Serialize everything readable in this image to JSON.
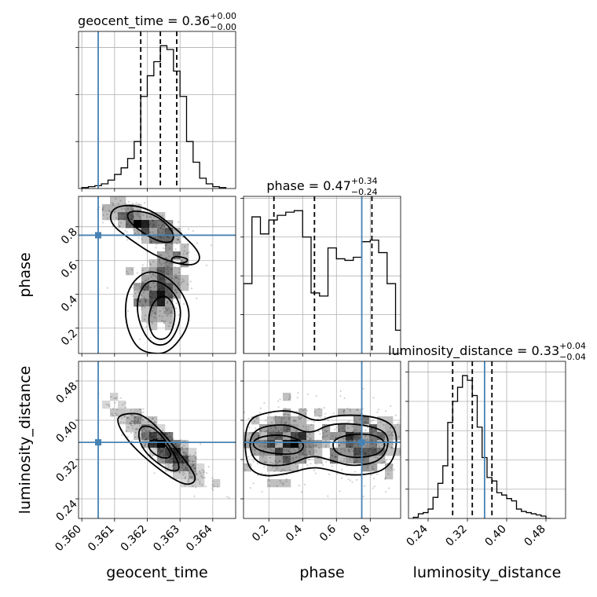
{
  "chart_data": {
    "type": "corner",
    "parameters": [
      "geocent_time",
      "phase",
      "luminosity_distance"
    ],
    "truths": [
      0.3605,
      0.75,
      0.355
    ],
    "truth_color": "#4682b4",
    "titles": [
      {
        "name": "geocent_time = 0.36",
        "sup": "+0.00",
        "sub": "−0.00"
      },
      {
        "name": "phase = 0.47",
        "sup": "+0.34",
        "sub": "−0.24"
      },
      {
        "name": "luminosity_distance = 0.33",
        "sup": "+0.04",
        "sub": "−0.04"
      }
    ],
    "axes": {
      "geocent_time": {
        "range": [
          0.3599,
          0.3647
        ],
        "ticks": [
          "0.360",
          "0.361",
          "0.362",
          "0.363",
          "0.364"
        ],
        "tick_values": [
          0.36,
          0.361,
          0.362,
          0.363,
          0.364
        ]
      },
      "phase": {
        "range": [
          0.05,
          0.98
        ],
        "ticks": [
          "0.2",
          "0.4",
          "0.6",
          "0.8"
        ],
        "tick_values": [
          0.2,
          0.4,
          0.6,
          0.8
        ]
      },
      "luminosity_distance": {
        "range": [
          0.2,
          0.52
        ],
        "ticks": [
          "0.24",
          "0.32",
          "0.40",
          "0.48"
        ],
        "tick_values": [
          0.24,
          0.32,
          0.4,
          0.48
        ]
      }
    },
    "hist1d": [
      {
        "param": "geocent_time",
        "quantiles": [
          0.3618,
          0.3624,
          0.3629
        ],
        "bin_edges": [
          0.36,
          0.3602,
          0.3604,
          0.3606,
          0.3608,
          0.361,
          0.3612,
          0.3614,
          0.3616,
          0.3618,
          0.362,
          0.3622,
          0.3624,
          0.3626,
          0.3628,
          0.363,
          0.3632,
          0.3634,
          0.3636,
          0.3638,
          0.364,
          0.3642,
          0.3644
        ],
        "counts": [
          1,
          2,
          3,
          5,
          9,
          15,
          22,
          32,
          50,
          98,
          120,
          135,
          152,
          148,
          125,
          98,
          50,
          28,
          11,
          5,
          2,
          1
        ]
      },
      {
        "param": "phase",
        "quantiles": [
          0.23,
          0.47,
          0.81
        ],
        "bin_edges": [
          0.05,
          0.1,
          0.15,
          0.2,
          0.25,
          0.3,
          0.35,
          0.4,
          0.45,
          0.5,
          0.55,
          0.6,
          0.65,
          0.7,
          0.75,
          0.8,
          0.85,
          0.9,
          0.95,
          1.0
        ],
        "counts": [
          45,
          88,
          77,
          86,
          89,
          91,
          92,
          75,
          39,
          37,
          68,
          61,
          60,
          62,
          72,
          73,
          65,
          45,
          15
        ]
      },
      {
        "param": "luminosity_distance",
        "quantiles": [
          0.29,
          0.33,
          0.37
        ],
        "bin_edges": [
          0.21,
          0.22,
          0.23,
          0.24,
          0.25,
          0.26,
          0.27,
          0.28,
          0.29,
          0.3,
          0.31,
          0.32,
          0.33,
          0.34,
          0.35,
          0.36,
          0.37,
          0.38,
          0.39,
          0.4,
          0.41,
          0.42,
          0.43,
          0.44,
          0.45,
          0.46,
          0.47,
          0.48,
          0.49
        ],
        "counts": [
          1,
          4,
          5,
          8,
          18,
          30,
          45,
          82,
          100,
          112,
          122,
          118,
          105,
          78,
          52,
          35,
          32,
          22,
          20,
          17,
          15,
          8,
          6,
          5,
          4,
          3,
          2,
          0
        ]
      }
    ],
    "joint": [
      {
        "x": "geocent_time",
        "y": "phase",
        "clusters": [
          {
            "center": [
              0.3624,
              0.43
            ],
            "sd": [
              0.0004,
              0.12
            ],
            "rho": 0.1,
            "n": 320
          },
          {
            "center": [
              0.362,
              0.8
            ],
            "sd": [
              0.00065,
              0.08
            ],
            "rho": -0.75,
            "n": 260
          }
        ],
        "contours": [
          [
            [
              0.362,
              0.05
            ],
            [
              0.3627,
              0.05
            ],
            [
              0.3634,
              0.25
            ],
            [
              0.363,
              0.45
            ],
            [
              0.3621,
              0.56
            ],
            [
              0.3614,
              0.45
            ],
            [
              0.3613,
              0.25
            ],
            [
              0.3616,
              0.1
            ]
          ],
          [
            [
              0.3621,
              0.1
            ],
            [
              0.3627,
              0.1
            ],
            [
              0.3631,
              0.28
            ],
            [
              0.3628,
              0.43
            ],
            [
              0.3621,
              0.5
            ],
            [
              0.3617,
              0.4
            ],
            [
              0.3617,
              0.25
            ]
          ],
          [
            [
              0.3622,
              0.13
            ],
            [
              0.3627,
              0.14
            ],
            [
              0.3629,
              0.3
            ],
            [
              0.3626,
              0.4
            ],
            [
              0.3622,
              0.37
            ],
            [
              0.362,
              0.25
            ]
          ],
          [
            [
              0.361,
              0.93
            ],
            [
              0.362,
              0.92
            ],
            [
              0.363,
              0.77
            ],
            [
              0.3637,
              0.63
            ],
            [
              0.3634,
              0.56
            ],
            [
              0.3624,
              0.61
            ],
            [
              0.3615,
              0.72
            ],
            [
              0.3608,
              0.83
            ]
          ],
          [
            [
              0.3614,
              0.9
            ],
            [
              0.3622,
              0.88
            ],
            [
              0.3628,
              0.78
            ],
            [
              0.3628,
              0.7
            ],
            [
              0.3622,
              0.72
            ],
            [
              0.3614,
              0.83
            ]
          ],
          [
            [
              0.3628,
              0.63
            ],
            [
              0.3633,
              0.61
            ],
            [
              0.3631,
              0.58
            ],
            [
              0.3627,
              0.59
            ]
          ]
        ]
      },
      {
        "x": "geocent_time",
        "y": "luminosity_distance",
        "clusters": [
          {
            "center": [
              0.36255,
              0.345
            ],
            "sd": [
              0.00065,
              0.038
            ],
            "rho": -0.88,
            "n": 620
          }
        ],
        "contours": [
          [
            [
              0.3613,
              0.415
            ],
            [
              0.362,
              0.412
            ],
            [
              0.3634,
              0.3
            ],
            [
              0.3635,
              0.272
            ],
            [
              0.363,
              0.268
            ],
            [
              0.3616,
              0.34
            ],
            [
              0.361,
              0.4
            ]
          ],
          [
            [
              0.3617,
              0.39
            ],
            [
              0.3623,
              0.386
            ],
            [
              0.3631,
              0.302
            ],
            [
              0.3627,
              0.293
            ],
            [
              0.3618,
              0.34
            ]
          ],
          [
            [
              0.3621,
              0.362
            ],
            [
              0.3625,
              0.356
            ],
            [
              0.3628,
              0.325
            ],
            [
              0.3624,
              0.322
            ],
            [
              0.362,
              0.343
            ]
          ]
        ]
      },
      {
        "x": "phase",
        "y": "luminosity_distance",
        "clusters": [
          {
            "center": [
              0.3,
              0.355
            ],
            "sd": [
              0.12,
              0.038
            ],
            "rho": 0.0,
            "n": 430
          },
          {
            "center": [
              0.75,
              0.355
            ],
            "sd": [
              0.11,
              0.038
            ],
            "rho": 0.0,
            "n": 370
          }
        ],
        "contours": [
          [
            [
              0.06,
              0.4
            ],
            [
              0.2,
              0.418
            ],
            [
              0.35,
              0.42
            ],
            [
              0.48,
              0.395
            ],
            [
              0.6,
              0.412
            ],
            [
              0.85,
              0.408
            ],
            [
              0.97,
              0.38
            ],
            [
              0.93,
              0.3
            ],
            [
              0.7,
              0.285
            ],
            [
              0.55,
              0.3
            ],
            [
              0.45,
              0.305
            ],
            [
              0.3,
              0.29
            ],
            [
              0.15,
              0.285
            ],
            [
              0.06,
              0.31
            ]
          ],
          [
            [
              0.08,
              0.38
            ],
            [
              0.3,
              0.395
            ],
            [
              0.44,
              0.37
            ],
            [
              0.57,
              0.395
            ],
            [
              0.8,
              0.39
            ],
            [
              0.92,
              0.37
            ],
            [
              0.88,
              0.318
            ],
            [
              0.7,
              0.305
            ],
            [
              0.57,
              0.318
            ],
            [
              0.45,
              0.33
            ],
            [
              0.3,
              0.305
            ],
            [
              0.1,
              0.312
            ]
          ],
          [
            [
              0.12,
              0.365
            ],
            [
              0.28,
              0.372
            ],
            [
              0.42,
              0.355
            ],
            [
              0.38,
              0.33
            ],
            [
              0.2,
              0.332
            ],
            [
              0.1,
              0.345
            ]
          ],
          [
            [
              0.58,
              0.365
            ],
            [
              0.78,
              0.375
            ],
            [
              0.9,
              0.358
            ],
            [
              0.86,
              0.33
            ],
            [
              0.7,
              0.322
            ],
            [
              0.58,
              0.335
            ]
          ]
        ]
      }
    ]
  }
}
